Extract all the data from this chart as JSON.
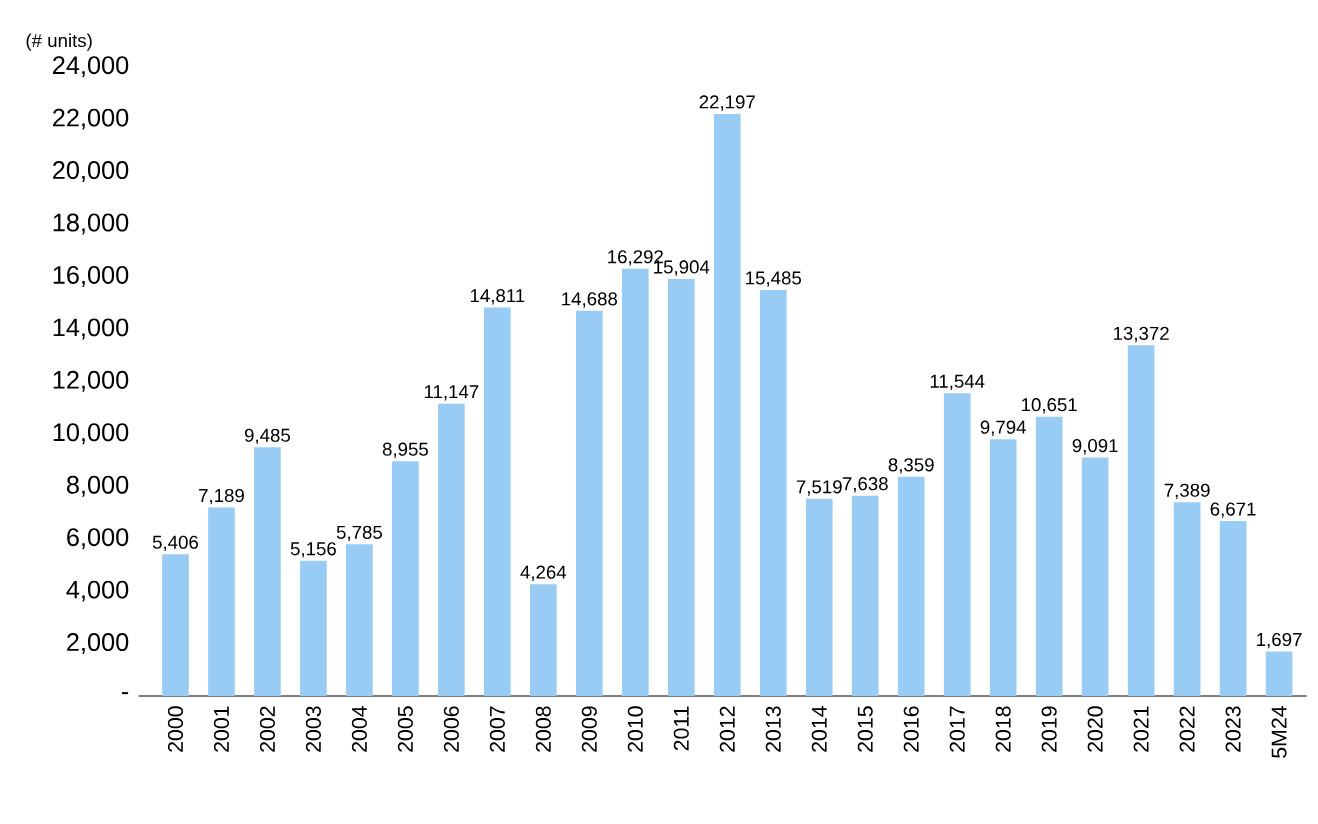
{
  "chart_data": {
    "type": "bar",
    "ylabel": "(# units)",
    "categories": [
      "2000",
      "2001",
      "2002",
      "2003",
      "2004",
      "2005",
      "2006",
      "2007",
      "2008",
      "2009",
      "2010",
      "2011",
      "2012",
      "2013",
      "2014",
      "2015",
      "2016",
      "2017",
      "2018",
      "2019",
      "2020",
      "2021",
      "2022",
      "2023",
      "5M24"
    ],
    "values": [
      5406,
      7189,
      9485,
      5156,
      5785,
      8955,
      11147,
      14811,
      4264,
      14688,
      16292,
      15904,
      22197,
      15485,
      7519,
      7638,
      8359,
      11544,
      9794,
      10651,
      9091,
      13372,
      7389,
      6671,
      1697
    ],
    "value_labels": [
      "5,406",
      "7,189",
      "9,485",
      "5,156",
      "5,785",
      "8,955",
      "11,147",
      "14,811",
      "4,264",
      "14,688",
      "16,292",
      "15,904",
      "22,197",
      "15,485",
      "7,519",
      "7,638",
      "8,359",
      "11,544",
      "9,794",
      "10,651",
      "9,091",
      "13,372",
      "7,389",
      "6,671",
      "1,697"
    ],
    "color": "#99ccf5",
    "ylim": [
      0,
      24000
    ],
    "yticks": [
      {
        "value": 0,
        "label": "-"
      },
      {
        "value": 2000,
        "label": "2,000"
      },
      {
        "value": 4000,
        "label": "4,000"
      },
      {
        "value": 6000,
        "label": "6,000"
      },
      {
        "value": 8000,
        "label": "8,000"
      },
      {
        "value": 10000,
        "label": "10,000"
      },
      {
        "value": 12000,
        "label": "12,000"
      },
      {
        "value": 14000,
        "label": "14,000"
      },
      {
        "value": 16000,
        "label": "16,000"
      },
      {
        "value": 18000,
        "label": "18,000"
      },
      {
        "value": 20000,
        "label": "20,000"
      },
      {
        "value": 22000,
        "label": "22,000"
      },
      {
        "value": 24000,
        "label": "24,000"
      }
    ],
    "grid": false
  }
}
